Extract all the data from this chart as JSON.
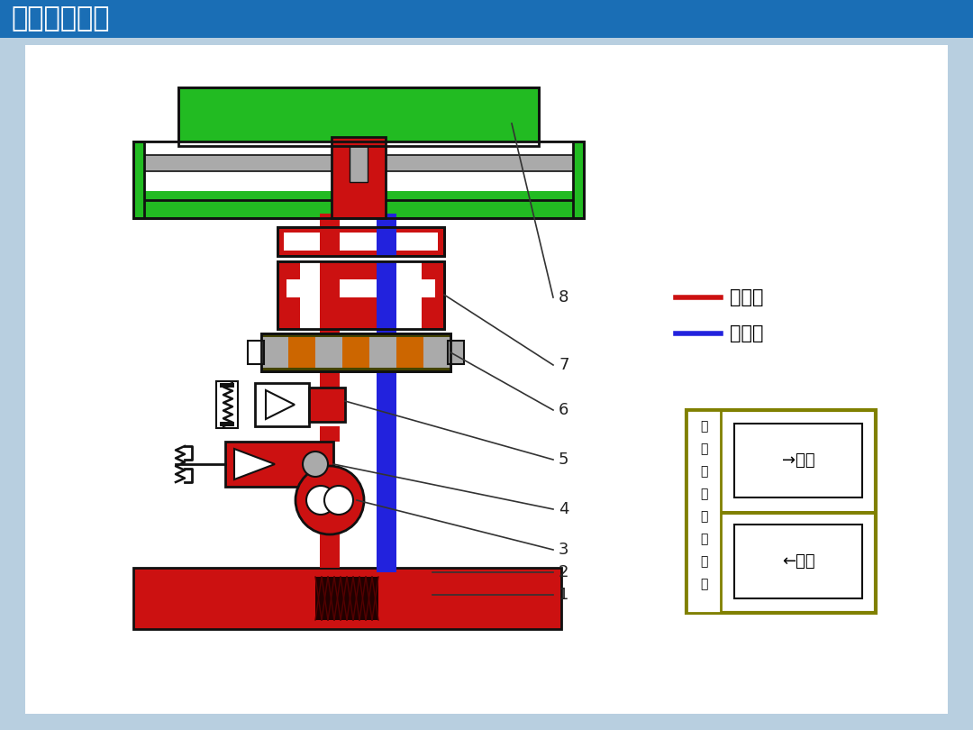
{
  "title": "双杆式活塞缸",
  "title_bg": "#1a6eb5",
  "title_fg": "#ffffff",
  "bg_outer": "#b8cfe0",
  "bg_inner": "#ffffff",
  "red": "#cc1111",
  "blue": "#2222dd",
  "green": "#22bb22",
  "silver": "#aaaaaa",
  "olive": "#808000",
  "black": "#111111",
  "white": "#ffffff",
  "darkred": "#880000",
  "legend_red_label": "进油路",
  "legend_blue_label": "回油路",
  "ctrl_label": "请选择换向阀位置",
  "right_btn": "→右位",
  "left_btn": "←左位"
}
